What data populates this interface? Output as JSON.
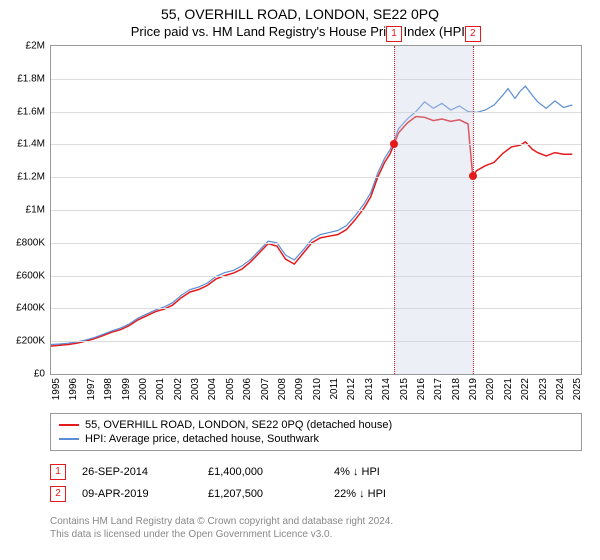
{
  "title": "55, OVERHILL ROAD, LONDON, SE22 0PQ",
  "subtitle": "Price paid vs. HM Land Registry's House Price Index (HPI)",
  "chart": {
    "type": "line",
    "background_color": "#ffffff",
    "grid_color": "#dddddd",
    "border_color": "#999999",
    "xlim": [
      1995,
      2025.5
    ],
    "ylim": [
      0,
      2000000
    ],
    "ytick_step": 200000,
    "yticks": [
      "£0",
      "£200K",
      "£400K",
      "£600K",
      "£800K",
      "£1M",
      "£1.2M",
      "£1.4M",
      "£1.6M",
      "£1.8M",
      "£2M"
    ],
    "xticks": [
      1995,
      1996,
      1997,
      1998,
      1999,
      2000,
      2001,
      2002,
      2003,
      2004,
      2005,
      2006,
      2007,
      2008,
      2009,
      2010,
      2011,
      2012,
      2013,
      2014,
      2015,
      2016,
      2017,
      2018,
      2019,
      2020,
      2021,
      2022,
      2023,
      2024,
      2025
    ],
    "series": [
      {
        "name": "price_paid",
        "label": "55, OVERHILL ROAD, LONDON, SE22 0PQ (detached house)",
        "color": "#e41a1c",
        "line_width": 1.5,
        "data": [
          [
            1995,
            170000
          ],
          [
            1995.5,
            175000
          ],
          [
            1996,
            180000
          ],
          [
            1996.5,
            188000
          ],
          [
            1997,
            200000
          ],
          [
            1997.5,
            215000
          ],
          [
            1998,
            235000
          ],
          [
            1998.5,
            255000
          ],
          [
            1999,
            270000
          ],
          [
            1999.5,
            295000
          ],
          [
            2000,
            330000
          ],
          [
            2000.5,
            355000
          ],
          [
            2001,
            380000
          ],
          [
            2001.5,
            395000
          ],
          [
            2002,
            420000
          ],
          [
            2002.5,
            465000
          ],
          [
            2003,
            500000
          ],
          [
            2003.5,
            515000
          ],
          [
            2004,
            540000
          ],
          [
            2004.5,
            580000
          ],
          [
            2005,
            600000
          ],
          [
            2005.5,
            615000
          ],
          [
            2006,
            640000
          ],
          [
            2006.5,
            685000
          ],
          [
            2007,
            740000
          ],
          [
            2007.5,
            795000
          ],
          [
            2008,
            780000
          ],
          [
            2008.5,
            700000
          ],
          [
            2009,
            670000
          ],
          [
            2009.5,
            735000
          ],
          [
            2010,
            800000
          ],
          [
            2010.5,
            830000
          ],
          [
            2011,
            840000
          ],
          [
            2011.5,
            850000
          ],
          [
            2012,
            880000
          ],
          [
            2012.5,
            940000
          ],
          [
            2013,
            1010000
          ],
          [
            2013.4,
            1080000
          ],
          [
            2013.8,
            1200000
          ],
          [
            2014.2,
            1290000
          ],
          [
            2014.5,
            1340000
          ],
          [
            2014.74,
            1400000
          ],
          [
            2015,
            1470000
          ],
          [
            2015.5,
            1530000
          ],
          [
            2016,
            1570000
          ],
          [
            2016.5,
            1565000
          ],
          [
            2017,
            1545000
          ],
          [
            2017.5,
            1555000
          ],
          [
            2018,
            1540000
          ],
          [
            2018.5,
            1550000
          ],
          [
            2019,
            1525000
          ],
          [
            2019.27,
            1207500
          ],
          [
            2019.5,
            1240000
          ],
          [
            2020,
            1270000
          ],
          [
            2020.5,
            1290000
          ],
          [
            2021,
            1345000
          ],
          [
            2021.5,
            1385000
          ],
          [
            2022,
            1395000
          ],
          [
            2022.3,
            1415000
          ],
          [
            2022.7,
            1370000
          ],
          [
            2023,
            1350000
          ],
          [
            2023.5,
            1330000
          ],
          [
            2024,
            1350000
          ],
          [
            2024.5,
            1340000
          ],
          [
            2025,
            1340000
          ]
        ]
      },
      {
        "name": "hpi",
        "label": "HPI: Average price, detached house, Southwark",
        "color": "#5b8dd6",
        "line_width": 1.2,
        "data": [
          [
            1995,
            180000
          ],
          [
            1995.5,
            183000
          ],
          [
            1996,
            188000
          ],
          [
            1996.5,
            196000
          ],
          [
            1997,
            208000
          ],
          [
            1997.5,
            222000
          ],
          [
            1998,
            242000
          ],
          [
            1998.5,
            262000
          ],
          [
            1999,
            280000
          ],
          [
            1999.5,
            305000
          ],
          [
            2000,
            340000
          ],
          [
            2000.5,
            365000
          ],
          [
            2001,
            390000
          ],
          [
            2001.5,
            408000
          ],
          [
            2002,
            435000
          ],
          [
            2002.5,
            480000
          ],
          [
            2003,
            515000
          ],
          [
            2003.5,
            530000
          ],
          [
            2004,
            555000
          ],
          [
            2004.5,
            595000
          ],
          [
            2005,
            618000
          ],
          [
            2005.5,
            632000
          ],
          [
            2006,
            660000
          ],
          [
            2006.5,
            700000
          ],
          [
            2007,
            755000
          ],
          [
            2007.5,
            810000
          ],
          [
            2008,
            800000
          ],
          [
            2008.5,
            725000
          ],
          [
            2009,
            695000
          ],
          [
            2009.5,
            755000
          ],
          [
            2010,
            820000
          ],
          [
            2010.5,
            850000
          ],
          [
            2011,
            862000
          ],
          [
            2011.5,
            875000
          ],
          [
            2012,
            905000
          ],
          [
            2012.5,
            965000
          ],
          [
            2013,
            1035000
          ],
          [
            2013.4,
            1105000
          ],
          [
            2013.8,
            1225000
          ],
          [
            2014.2,
            1315000
          ],
          [
            2014.5,
            1365000
          ],
          [
            2014.74,
            1425000
          ],
          [
            2015,
            1495000
          ],
          [
            2015.5,
            1555000
          ],
          [
            2016,
            1600000
          ],
          [
            2016.5,
            1660000
          ],
          [
            2017,
            1620000
          ],
          [
            2017.5,
            1650000
          ],
          [
            2018,
            1610000
          ],
          [
            2018.5,
            1635000
          ],
          [
            2019,
            1600000
          ],
          [
            2019.5,
            1595000
          ],
          [
            2020,
            1610000
          ],
          [
            2020.5,
            1640000
          ],
          [
            2021,
            1700000
          ],
          [
            2021.3,
            1740000
          ],
          [
            2021.7,
            1680000
          ],
          [
            2022,
            1725000
          ],
          [
            2022.3,
            1755000
          ],
          [
            2022.7,
            1700000
          ],
          [
            2023,
            1660000
          ],
          [
            2023.5,
            1620000
          ],
          [
            2024,
            1665000
          ],
          [
            2024.5,
            1625000
          ],
          [
            2025,
            1640000
          ]
        ]
      }
    ],
    "sale_markers": [
      {
        "n": "1",
        "x": 2014.74,
        "y": 1400000,
        "color": "#e41a1c"
      },
      {
        "n": "2",
        "x": 2019.27,
        "y": 1207500,
        "color": "#e41a1c"
      }
    ],
    "shade": {
      "from": 2014.74,
      "to": 2019.27,
      "color": "rgba(200,210,230,0.35)"
    }
  },
  "sales": [
    {
      "n": "1",
      "date": "26-SEP-2014",
      "price": "£1,400,000",
      "diff": "4% ↓ HPI",
      "color": "#e41a1c"
    },
    {
      "n": "2",
      "date": "09-APR-2019",
      "price": "£1,207,500",
      "diff": "22% ↓ HPI",
      "color": "#e41a1c"
    }
  ],
  "footer": {
    "line1": "Contains HM Land Registry data © Crown copyright and database right 2024.",
    "line2": "This data is licensed under the Open Government Licence v3.0."
  }
}
